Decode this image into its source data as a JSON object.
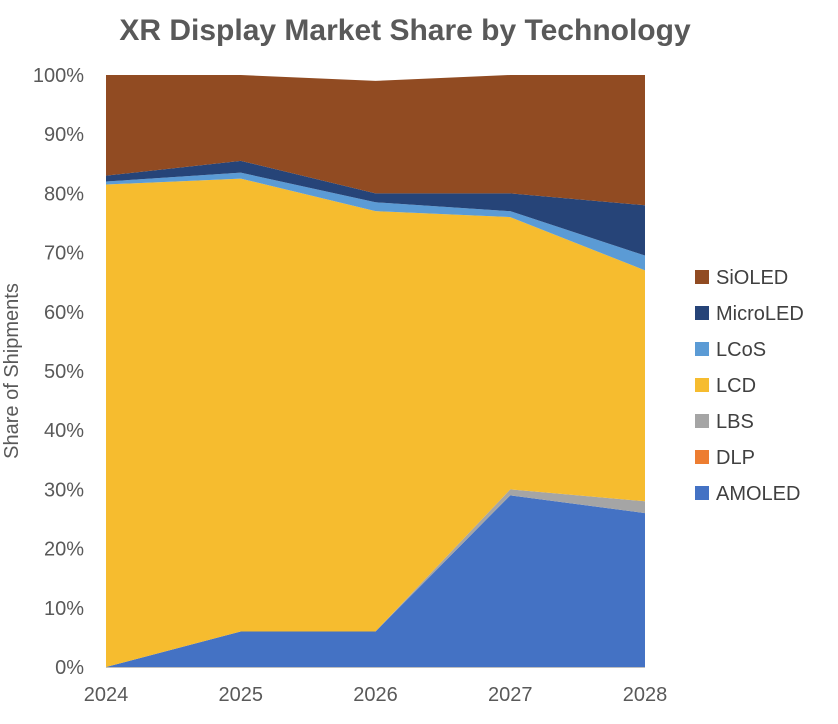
{
  "chart_data": {
    "type": "area",
    "stacked": true,
    "normalized_percent": true,
    "title": "XR Display Market Share by Technology",
    "ylabel": "Share of Shipments",
    "xlabel": "",
    "x": [
      "2024",
      "2025",
      "2026",
      "2027",
      "2028"
    ],
    "ylim": [
      0,
      100
    ],
    "yticks": [
      "0%",
      "10%",
      "20%",
      "30%",
      "40%",
      "50%",
      "60%",
      "70%",
      "80%",
      "90%",
      "100%"
    ],
    "grid": false,
    "legend_position": "right",
    "series": [
      {
        "name": "AMOLED",
        "color": "#4472C4",
        "values": [
          0,
          6,
          6,
          29,
          26
        ]
      },
      {
        "name": "DLP",
        "color": "#ED7D31",
        "values": [
          0,
          0,
          0,
          0,
          0
        ]
      },
      {
        "name": "LBS",
        "color": "#A5A5A5",
        "values": [
          0,
          0,
          0,
          1,
          2
        ]
      },
      {
        "name": "LCD",
        "color": "#F6BC2F",
        "values": [
          81.5,
          76.5,
          71,
          46,
          39
        ]
      },
      {
        "name": "LCoS",
        "color": "#5B9BD5",
        "values": [
          0.5,
          1,
          1.5,
          1,
          2.5
        ]
      },
      {
        "name": "MicroLED",
        "color": "#264478",
        "values": [
          1,
          2,
          1.5,
          3,
          8.5
        ]
      },
      {
        "name": "SiOLED",
        "color": "#914B22",
        "values": [
          17,
          14.5,
          19,
          20,
          22
        ]
      }
    ]
  }
}
